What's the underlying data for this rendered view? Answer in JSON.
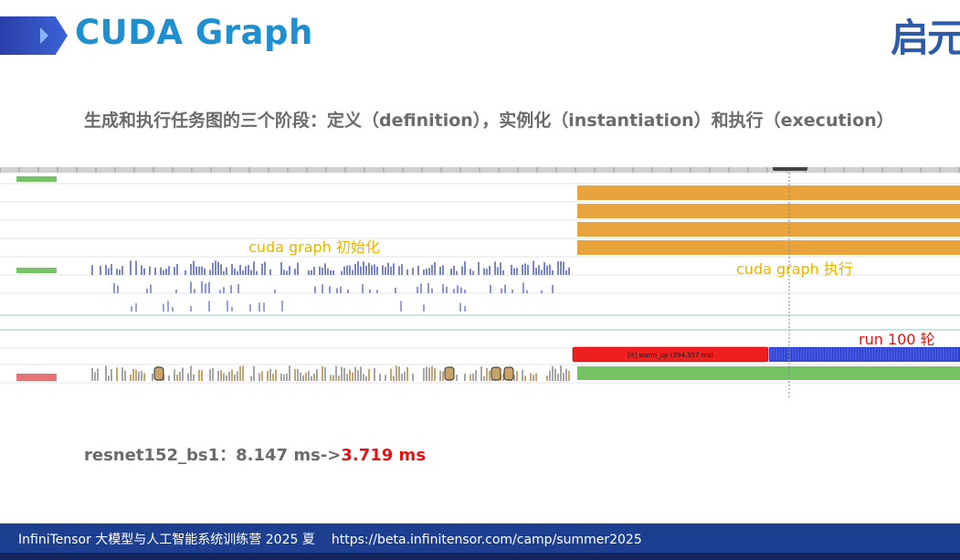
{
  "slide": {
    "title": "CUDA Graph",
    "logo": "启元",
    "subtitle": "生成和执行任务图的三个阶段：定义（definition），实例化（instantiation）和执行（execution）"
  },
  "trace": {
    "init_label": "cuda graph 初始化",
    "exec_label": "cuda graph 执行",
    "run_label": "run 100 轮",
    "warmup_label": "[it] warm_up (394.357 ms)",
    "colors": {
      "kernel_orange": "#e8a33c",
      "kernel_blue": "#7a86c8",
      "warmup_red": "#ee1f1f",
      "run_blue": "#2a3fd0",
      "green": "#74c365",
      "init_label": "#e6b400",
      "run_label": "#e01616"
    }
  },
  "result": {
    "prefix": "resnet152_bs1：8.147 ms->",
    "after": "3.719 ms"
  },
  "footer": {
    "camp": "InfiniTensor 大模型与人工智能系统训练营 2025 夏",
    "url": "https://beta.infinitensor.com/camp/summer2025"
  }
}
